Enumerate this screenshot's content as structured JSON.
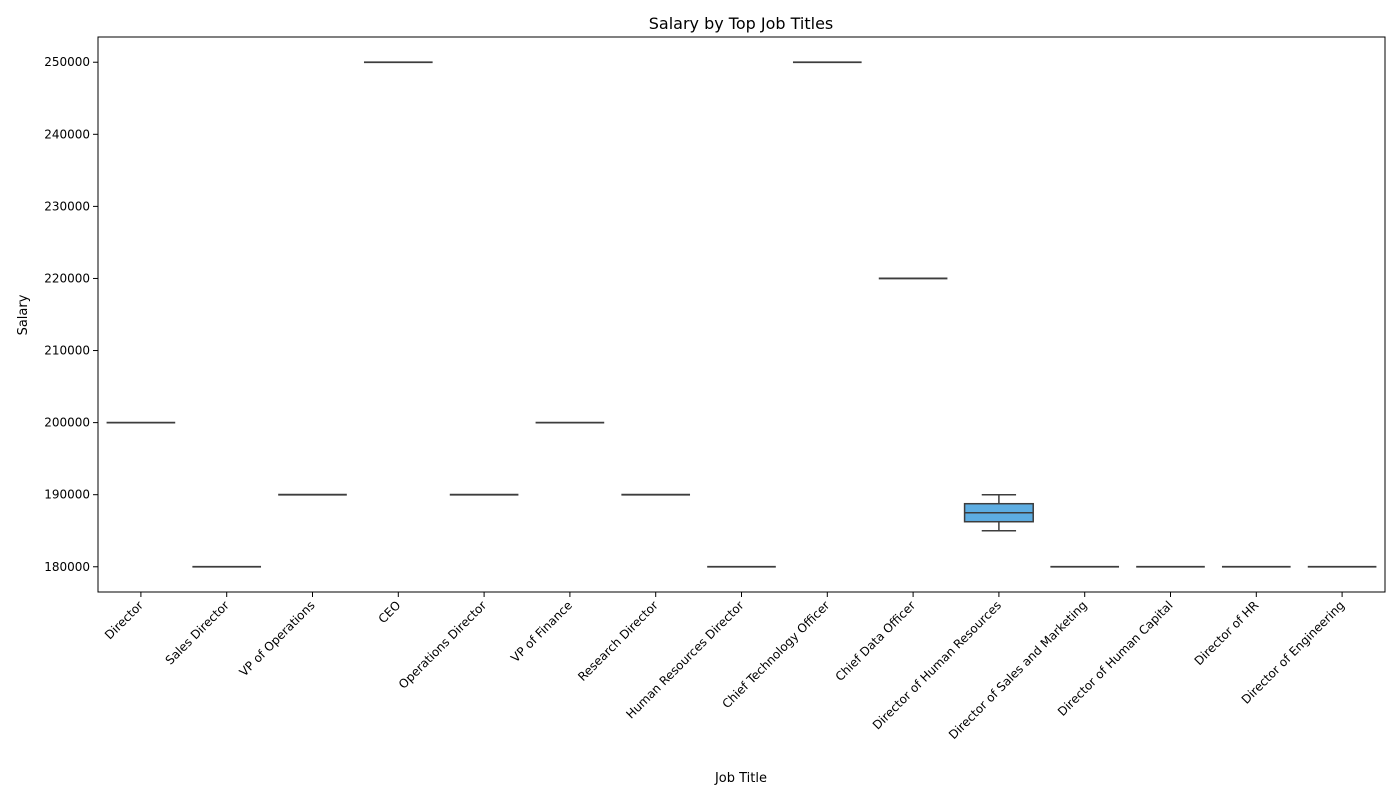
{
  "chart_data": {
    "type": "box",
    "title": "Salary by Top Job Titles",
    "xlabel": "Job Title",
    "ylabel": "Salary",
    "ylim": [
      176500,
      253500
    ],
    "yticks": [
      180000,
      190000,
      200000,
      210000,
      220000,
      230000,
      240000,
      250000
    ],
    "x_tick_rotation_deg": 45,
    "grid": false,
    "legend": "none",
    "colors": {
      "box_fill": "#5dade2",
      "box_line": "#3d3d3d",
      "axis": "#000000"
    },
    "categories": [
      "Director",
      "Sales Director",
      "VP of Operations",
      "CEO",
      "Operations Director",
      "VP of Finance",
      "Research Director",
      "Human Resources Director",
      "Chief Technology Officer",
      "Chief Data Officer",
      "Director of Human Resources",
      "Director of Sales and Marketing",
      "Director of Human Capital",
      "Director of HR",
      "Director of Engineering"
    ],
    "boxes": [
      {
        "category": "Director",
        "min": 200000,
        "q1": 200000,
        "median": 200000,
        "q3": 200000,
        "max": 200000
      },
      {
        "category": "Sales Director",
        "min": 180000,
        "q1": 180000,
        "median": 180000,
        "q3": 180000,
        "max": 180000
      },
      {
        "category": "VP of Operations",
        "min": 190000,
        "q1": 190000,
        "median": 190000,
        "q3": 190000,
        "max": 190000
      },
      {
        "category": "CEO",
        "min": 250000,
        "q1": 250000,
        "median": 250000,
        "q3": 250000,
        "max": 250000
      },
      {
        "category": "Operations Director",
        "min": 190000,
        "q1": 190000,
        "median": 190000,
        "q3": 190000,
        "max": 190000
      },
      {
        "category": "VP of Finance",
        "min": 200000,
        "q1": 200000,
        "median": 200000,
        "q3": 200000,
        "max": 200000
      },
      {
        "category": "Research Director",
        "min": 190000,
        "q1": 190000,
        "median": 190000,
        "q3": 190000,
        "max": 190000
      },
      {
        "category": "Human Resources Director",
        "min": 180000,
        "q1": 180000,
        "median": 180000,
        "q3": 180000,
        "max": 180000
      },
      {
        "category": "Chief Technology Officer",
        "min": 250000,
        "q1": 250000,
        "median": 250000,
        "q3": 250000,
        "max": 250000
      },
      {
        "category": "Chief Data Officer",
        "min": 220000,
        "q1": 220000,
        "median": 220000,
        "q3": 220000,
        "max": 220000
      },
      {
        "category": "Director of Human Resources",
        "min": 185000,
        "q1": 186250,
        "median": 187500,
        "q3": 188750,
        "max": 190000
      },
      {
        "category": "Director of Sales and Marketing",
        "min": 180000,
        "q1": 180000,
        "median": 180000,
        "q3": 180000,
        "max": 180000
      },
      {
        "category": "Director of Human Capital",
        "min": 180000,
        "q1": 180000,
        "median": 180000,
        "q3": 180000,
        "max": 180000
      },
      {
        "category": "Director of HR",
        "min": 180000,
        "q1": 180000,
        "median": 180000,
        "q3": 180000,
        "max": 180000
      },
      {
        "category": "Director of Engineering",
        "min": 180000,
        "q1": 180000,
        "median": 180000,
        "q3": 180000,
        "max": 180000
      }
    ]
  }
}
